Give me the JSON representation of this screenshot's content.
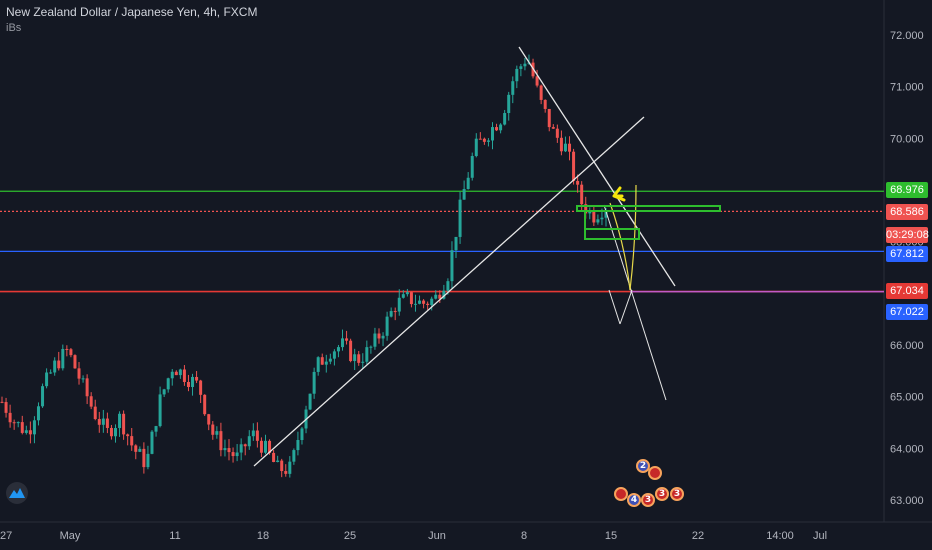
{
  "header": {
    "symbol_title": "New Zealand Dollar / Japanese Yen, 4h, FXCM",
    "indicator_label": "iBs"
  },
  "price_tags": [
    {
      "label": "68.976",
      "color": "#2ebd2e",
      "price": 68.976
    },
    {
      "label": "68.586",
      "color": "#ef5350",
      "price": 68.586
    },
    {
      "label": "03:29:08",
      "color": "#ef5350",
      "price": 68.17
    },
    {
      "label": "67.812",
      "color": "#2962ff",
      "price": 67.812
    },
    {
      "label": "67.034",
      "color": "#e53935",
      "price": 67.034
    },
    {
      "label": "67.022",
      "color": "#2962ff",
      "price": 66.7
    }
  ],
  "event_badges": [
    {
      "label": "2"
    },
    {
      "label": "4"
    },
    {
      "label": "3"
    },
    {
      "label": "3"
    },
    {
      "label": "3"
    }
  ],
  "chart_data": {
    "type": "candlestick",
    "title": "New Zealand Dollar / Japanese Yen, 4h, FXCM",
    "ylim": [
      62.8,
      72.3
    ],
    "y_ticks": [
      63.0,
      64.0,
      65.0,
      66.0,
      67.0,
      68.0,
      69.0,
      70.0,
      71.0,
      72.0
    ],
    "y_tick_labels": [
      "63.000",
      "64.000",
      "65.000",
      "66.000",
      "67.000",
      "68.000",
      "69.000",
      "70.000",
      "71.000",
      "72.000"
    ],
    "x_tick_labels": [
      "27",
      "May",
      "11",
      "18",
      "25",
      "Jun",
      "8",
      "15",
      "22",
      "14:00",
      "Jul"
    ],
    "close_path": [
      [
        "Apr 27",
        64.9
      ],
      [
        "Apr 29",
        64.5
      ],
      [
        "May 1",
        64.3
      ],
      [
        "May 3",
        65.1
      ],
      [
        "May 5",
        65.6
      ],
      [
        "May 6",
        65.9
      ],
      [
        "May 7",
        65.3
      ],
      [
        "May 8",
        64.7
      ],
      [
        "May 9",
        64.3
      ],
      [
        "May 11",
        64.6
      ],
      [
        "May 12",
        64.0
      ],
      [
        "May 13",
        63.7
      ],
      [
        "May 14",
        64.9
      ],
      [
        "May 15",
        65.6
      ],
      [
        "May 16",
        65.4
      ],
      [
        "May 17",
        65.2
      ],
      [
        "May 18",
        64.3
      ],
      [
        "May 19",
        64.0
      ],
      [
        "May 20",
        63.8
      ],
      [
        "May 21",
        64.3
      ],
      [
        "May 22",
        64.0
      ],
      [
        "May 23",
        63.6
      ],
      [
        "May 24",
        63.6
      ],
      [
        "May 25",
        64.7
      ],
      [
        "May 26",
        65.6
      ],
      [
        "May 27",
        65.9
      ],
      [
        "May 28",
        66.0
      ],
      [
        "May 29",
        65.7
      ],
      [
        "May 30",
        65.9
      ],
      [
        "May 31",
        66.3
      ],
      [
        "Jun 1",
        66.8
      ],
      [
        "Jun 2",
        66.9
      ],
      [
        "Jun 3",
        66.8
      ],
      [
        "Jun 4",
        66.9
      ],
      [
        "Jun 5",
        67.4
      ],
      [
        "Jun 6",
        68.8
      ],
      [
        "Jun 7",
        69.8
      ],
      [
        "Jun 8",
        70.1
      ],
      [
        "Jun 9",
        70.4
      ],
      [
        "Jun 10",
        71.2
      ],
      [
        "Jun 11",
        71.6
      ],
      [
        "Jun 12",
        70.7
      ],
      [
        "Jun 13",
        70.1
      ],
      [
        "Jun 14",
        69.8
      ],
      [
        "Jun 15",
        68.8
      ],
      [
        "Jun 16",
        68.5
      ],
      [
        "Jun 17",
        68.7
      ]
    ],
    "horizontal_levels": [
      {
        "price": 68.976,
        "color": "#2ebd2e",
        "style": "solid"
      },
      {
        "price": 68.586,
        "color": "#ef5350",
        "style": "dotted"
      },
      {
        "price": 67.812,
        "color": "#2962ff",
        "style": "solid"
      },
      {
        "price": 67.034,
        "color": "#e53935",
        "style": "solid"
      }
    ],
    "grid": false
  }
}
